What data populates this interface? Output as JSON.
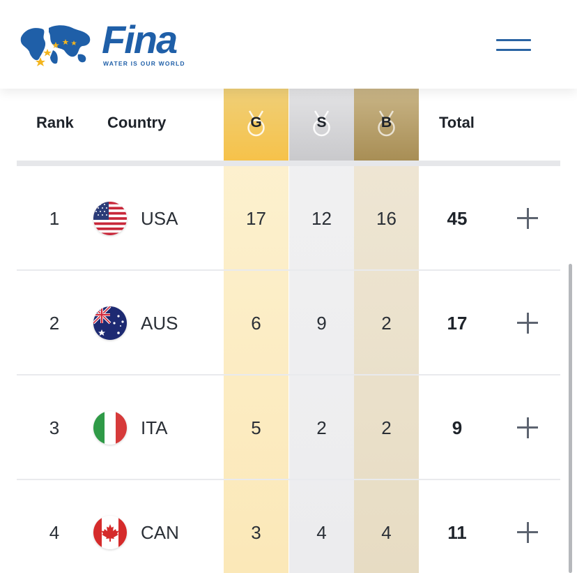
{
  "header": {
    "brand": "Fina",
    "tagline": "WATER IS OUR WORLD"
  },
  "table": {
    "columns": {
      "rank": "Rank",
      "country": "Country",
      "gold": "G",
      "silver": "S",
      "bronze": "B",
      "total": "Total"
    },
    "rows": [
      {
        "rank": "1",
        "country": "USA",
        "flag": "usa-flag-icon",
        "gold": "17",
        "silver": "12",
        "bronze": "16",
        "total": "45"
      },
      {
        "rank": "2",
        "country": "AUS",
        "flag": "australia-flag-icon",
        "gold": "6",
        "silver": "9",
        "bronze": "2",
        "total": "17"
      },
      {
        "rank": "3",
        "country": "ITA",
        "flag": "italy-flag-icon",
        "gold": "5",
        "silver": "2",
        "bronze": "2",
        "total": "9"
      },
      {
        "rank": "4",
        "country": "CAN",
        "flag": "canada-flag-icon",
        "gold": "3",
        "silver": "4",
        "bronze": "4",
        "total": "11"
      }
    ]
  },
  "colors": {
    "brand_blue": "#1f5fa8",
    "gold": "#f6c24a",
    "silver": "#c9c9cc",
    "bronze": "#a88e55"
  }
}
